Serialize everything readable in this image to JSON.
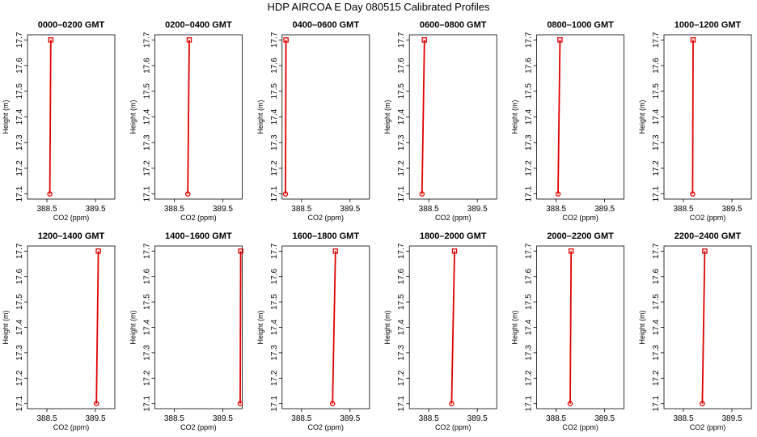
{
  "title": "HDP  AIRCOA E  Day 080515  Calibrated Profiles",
  "colors": {
    "series": "#e00000",
    "axis": "#000000",
    "background": "#ffffff"
  },
  "chart_data": [
    {
      "type": "line",
      "title": "0000–0200 GMT",
      "xlabel": "CO2 (ppm)",
      "ylabel": "Height (m)",
      "xlim": [
        388.1,
        389.9
      ],
      "ylim": [
        17.08,
        17.72
      ],
      "xticks": [
        388.5,
        389.5
      ],
      "yticks": [
        17.1,
        17.2,
        17.3,
        17.4,
        17.5,
        17.6,
        17.7
      ],
      "points": [
        {
          "x": 388.56,
          "y": 17.1
        },
        {
          "x": 388.58,
          "y": 17.7
        }
      ]
    },
    {
      "type": "line",
      "title": "0200–0400 GMT",
      "xlabel": "CO2 (ppm)",
      "ylabel": "Height (m)",
      "xlim": [
        388.1,
        389.9
      ],
      "ylim": [
        17.08,
        17.72
      ],
      "xticks": [
        388.5,
        389.5
      ],
      "yticks": [
        17.1,
        17.2,
        17.3,
        17.4,
        17.5,
        17.6,
        17.7
      ],
      "points": [
        {
          "x": 388.78,
          "y": 17.1
        },
        {
          "x": 388.81,
          "y": 17.7
        }
      ]
    },
    {
      "type": "line",
      "title": "0400–0600 GMT",
      "xlabel": "CO2 (ppm)",
      "ylabel": "Height (m)",
      "xlim": [
        388.1,
        389.9
      ],
      "ylim": [
        17.08,
        17.72
      ],
      "xticks": [
        388.5,
        389.5
      ],
      "yticks": [
        17.1,
        17.2,
        17.3,
        17.4,
        17.5,
        17.6,
        17.7
      ],
      "points": [
        {
          "x": 388.17,
          "y": 17.1
        },
        {
          "x": 388.18,
          "y": 17.7
        }
      ]
    },
    {
      "type": "line",
      "title": "0600–0800 GMT",
      "xlabel": "CO2 (ppm)",
      "ylabel": "Height (m)",
      "xlim": [
        388.1,
        389.9
      ],
      "ylim": [
        17.08,
        17.72
      ],
      "xticks": [
        388.5,
        389.5
      ],
      "yticks": [
        17.1,
        17.2,
        17.3,
        17.4,
        17.5,
        17.6,
        17.7
      ],
      "points": [
        {
          "x": 388.36,
          "y": 17.1
        },
        {
          "x": 388.41,
          "y": 17.7
        }
      ]
    },
    {
      "type": "line",
      "title": "0800–1000 GMT",
      "xlabel": "CO2 (ppm)",
      "ylabel": "Height (m)",
      "xlim": [
        388.1,
        389.9
      ],
      "ylim": [
        17.08,
        17.72
      ],
      "xticks": [
        388.5,
        389.5
      ],
      "yticks": [
        17.1,
        17.2,
        17.3,
        17.4,
        17.5,
        17.6,
        17.7
      ],
      "points": [
        {
          "x": 388.54,
          "y": 17.1
        },
        {
          "x": 388.58,
          "y": 17.7
        }
      ]
    },
    {
      "type": "line",
      "title": "1000–1200 GMT",
      "xlabel": "CO2 (ppm)",
      "ylabel": "Height (m)",
      "xlim": [
        388.1,
        389.9
      ],
      "ylim": [
        17.08,
        17.72
      ],
      "xticks": [
        388.5,
        389.5
      ],
      "yticks": [
        17.1,
        17.2,
        17.3,
        17.4,
        17.5,
        17.6,
        17.7
      ],
      "points": [
        {
          "x": 388.69,
          "y": 17.1
        },
        {
          "x": 388.7,
          "y": 17.7
        }
      ]
    },
    {
      "type": "line",
      "title": "1200–1400 GMT",
      "xlabel": "CO2 (ppm)",
      "ylabel": "Height (m)",
      "xlim": [
        388.1,
        389.9
      ],
      "ylim": [
        17.08,
        17.72
      ],
      "xticks": [
        388.5,
        389.5
      ],
      "yticks": [
        17.1,
        17.2,
        17.3,
        17.4,
        17.5,
        17.6,
        17.7
      ],
      "points": [
        {
          "x": 389.52,
          "y": 17.1
        },
        {
          "x": 389.56,
          "y": 17.7
        }
      ]
    },
    {
      "type": "line",
      "title": "1400–1600 GMT",
      "xlabel": "CO2 (ppm)",
      "ylabel": "Height (m)",
      "xlim": [
        388.1,
        389.9
      ],
      "ylim": [
        17.08,
        17.72
      ],
      "xticks": [
        388.5,
        389.5
      ],
      "yticks": [
        17.1,
        17.2,
        17.3,
        17.4,
        17.5,
        17.6,
        17.7
      ],
      "points": [
        {
          "x": 389.86,
          "y": 17.1
        },
        {
          "x": 389.87,
          "y": 17.7
        }
      ]
    },
    {
      "type": "line",
      "title": "1600–1800 GMT",
      "xlabel": "CO2 (ppm)",
      "ylabel": "Height (m)",
      "xlim": [
        388.1,
        389.9
      ],
      "ylim": [
        17.08,
        17.72
      ],
      "xticks": [
        388.5,
        389.5
      ],
      "yticks": [
        17.1,
        17.2,
        17.3,
        17.4,
        17.5,
        17.6,
        17.7
      ],
      "points": [
        {
          "x": 389.14,
          "y": 17.1
        },
        {
          "x": 389.2,
          "y": 17.7
        }
      ]
    },
    {
      "type": "line",
      "title": "1800–2000 GMT",
      "xlabel": "CO2 (ppm)",
      "ylabel": "Height (m)",
      "xlim": [
        388.1,
        389.9
      ],
      "ylim": [
        17.08,
        17.72
      ],
      "xticks": [
        388.5,
        389.5
      ],
      "yticks": [
        17.1,
        17.2,
        17.3,
        17.4,
        17.5,
        17.6,
        17.7
      ],
      "points": [
        {
          "x": 388.97,
          "y": 17.1
        },
        {
          "x": 389.03,
          "y": 17.7
        }
      ]
    },
    {
      "type": "line",
      "title": "2000–2200 GMT",
      "xlabel": "CO2 (ppm)",
      "ylabel": "Height (m)",
      "xlim": [
        388.1,
        389.9
      ],
      "ylim": [
        17.08,
        17.72
      ],
      "xticks": [
        388.5,
        389.5
      ],
      "yticks": [
        17.1,
        17.2,
        17.3,
        17.4,
        17.5,
        17.6,
        17.7
      ],
      "points": [
        {
          "x": 388.79,
          "y": 17.1
        },
        {
          "x": 388.81,
          "y": 17.7
        }
      ]
    },
    {
      "type": "line",
      "title": "2200–2400 GMT",
      "xlabel": "CO2 (ppm)",
      "ylabel": "Height (m)",
      "xlim": [
        388.1,
        389.9
      ],
      "ylim": [
        17.08,
        17.72
      ],
      "xticks": [
        388.5,
        389.5
      ],
      "yticks": [
        17.1,
        17.2,
        17.3,
        17.4,
        17.5,
        17.6,
        17.7
      ],
      "points": [
        {
          "x": 388.89,
          "y": 17.1
        },
        {
          "x": 388.94,
          "y": 17.7
        }
      ]
    }
  ]
}
